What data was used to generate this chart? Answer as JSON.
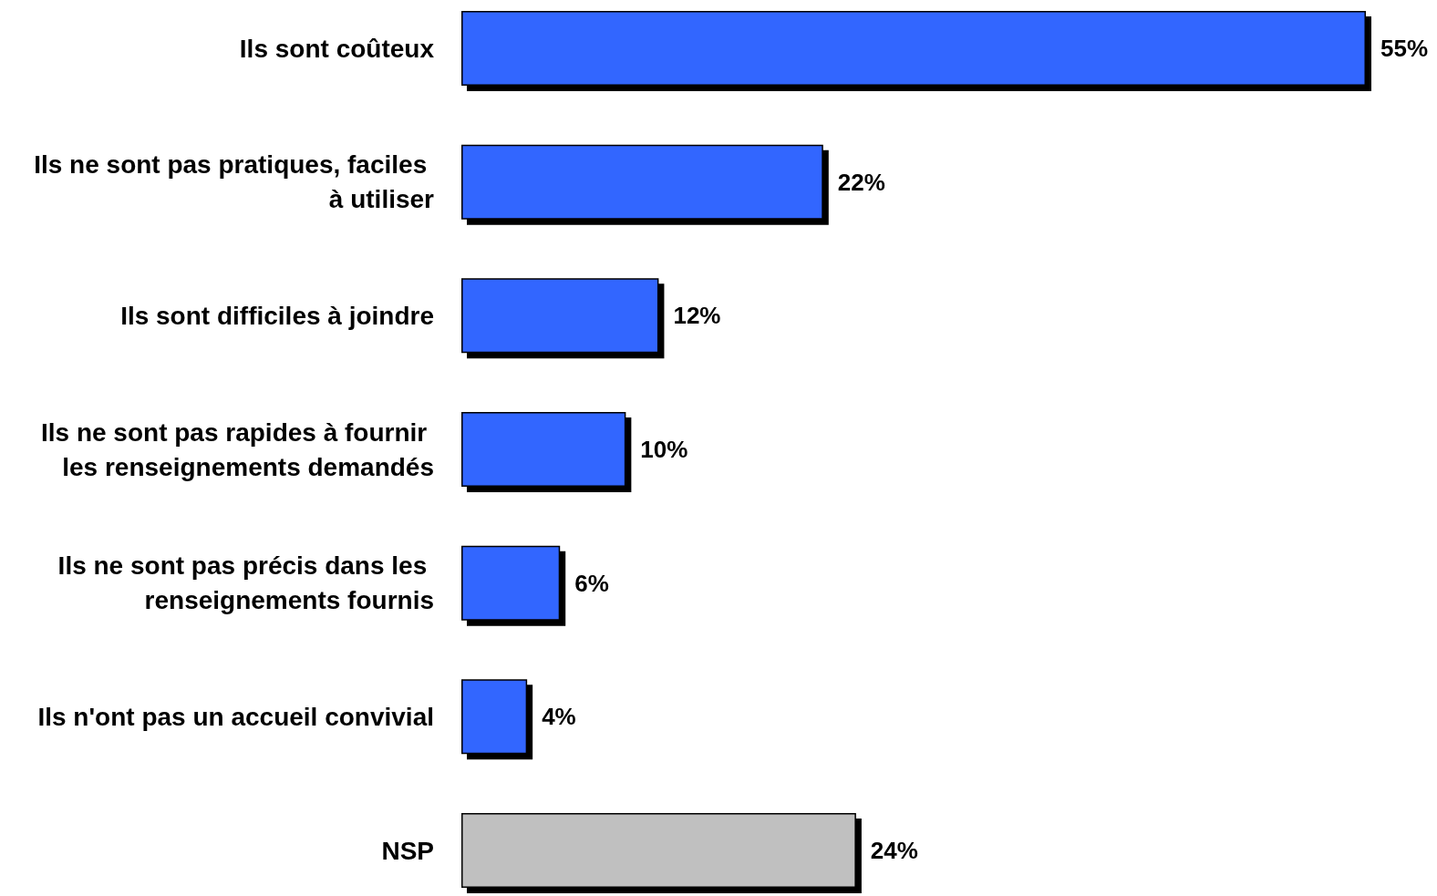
{
  "chart_data": {
    "type": "bar",
    "orientation": "horizontal",
    "categories": [
      "Ils sont coûteux",
      "Ils ne sont pas pratiques, faciles à utiliser",
      "Ils sont difficiles à joindre",
      "Ils ne sont pas rapides à fournir les renseignements demandés",
      "Ils ne sont pas précis dans les renseignements fournis",
      "Ils n'ont pas un accueil convivial",
      "NSP"
    ],
    "values": [
      55,
      22,
      12,
      10,
      6,
      4,
      24
    ],
    "colors": [
      "#3366ff",
      "#3366ff",
      "#3366ff",
      "#3366ff",
      "#3366ff",
      "#3366ff",
      "#c0c0c0"
    ],
    "value_labels": [
      "55%",
      "22%",
      "12%",
      "10%",
      "6%",
      "4%",
      "24%"
    ],
    "xlim": [
      0,
      55
    ],
    "tick_labels": "y",
    "grid": false
  }
}
